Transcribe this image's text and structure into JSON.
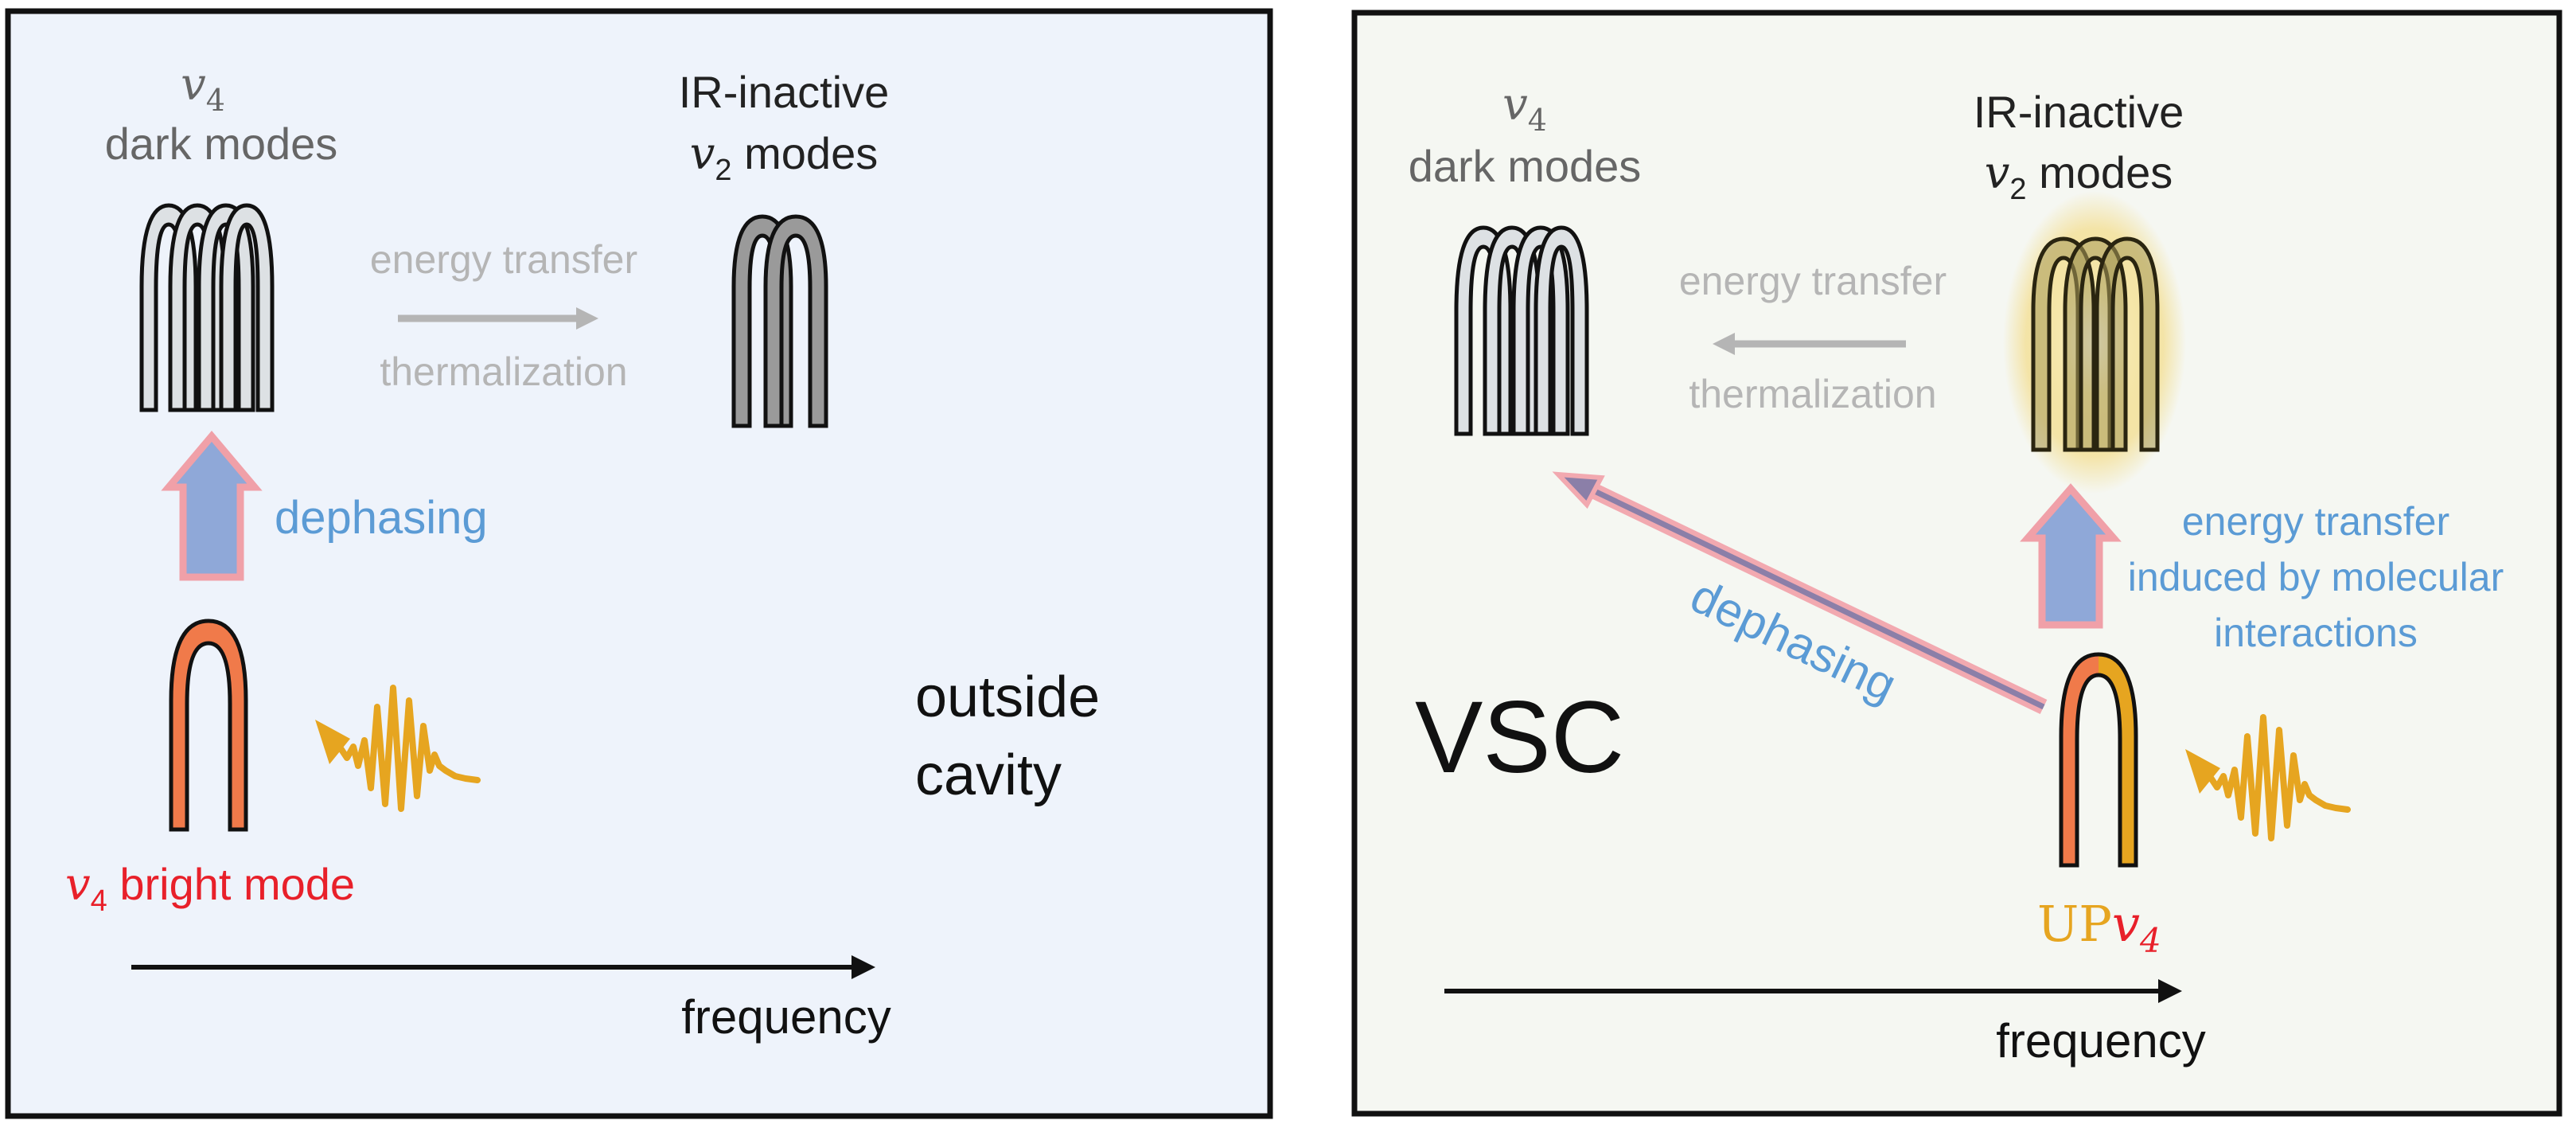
{
  "left_panel": {
    "dark_modes": {
      "symbol": "v",
      "sub": "4",
      "label": "dark modes"
    },
    "ir_inactive": {
      "line1": "IR-inactive",
      "symbol": "v",
      "sub": "2",
      "label": "modes"
    },
    "energy_transfer": "energy transfer",
    "thermalization": "thermalization",
    "dephasing": "dephasing",
    "bright_mode": {
      "symbol": "v",
      "sub": "4",
      "label": "bright mode"
    },
    "context": {
      "line1": "outside",
      "line2": "cavity"
    },
    "axis_label": "frequency"
  },
  "right_panel": {
    "dark_modes": {
      "symbol": "v",
      "sub": "4",
      "label": "dark modes"
    },
    "ir_inactive": {
      "line1": "IR-inactive",
      "symbol": "v",
      "sub": "2",
      "label": "modes"
    },
    "energy_transfer": "energy transfer",
    "thermalization": "thermalization",
    "dephasing": "dephasing",
    "induced": {
      "line1": "energy transfer",
      "line2": "induced by molecular",
      "line3": "interactions"
    },
    "regime": "VSC",
    "up_label": {
      "prefix": "UP",
      "symbol": "v",
      "sub": "4"
    },
    "axis_label": "frequency"
  },
  "colors": {
    "left_bg": "#eef3fb",
    "right_bg": "#f5f7f2",
    "text_dark": "#222222",
    "text_gray": "#666666",
    "text_light": "#b5b5b5",
    "blue": "#5b9bd5",
    "red": "#e8202a",
    "orange": "#f08050",
    "gold": "#e6a520"
  }
}
